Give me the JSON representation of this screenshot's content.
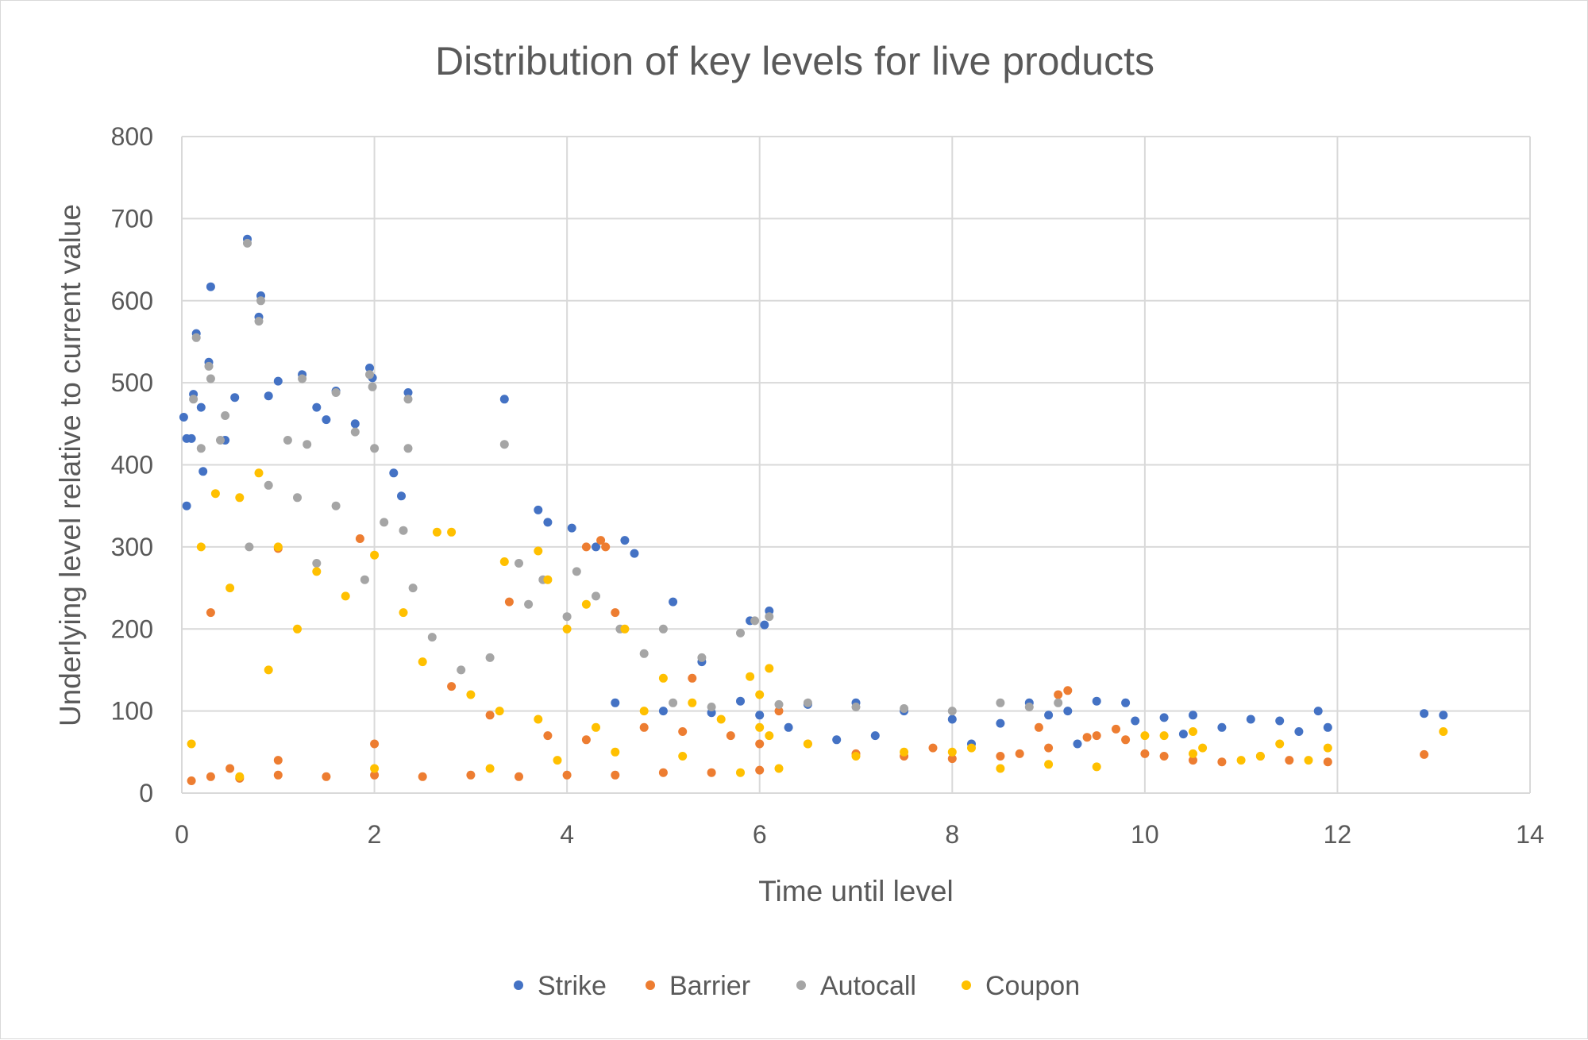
{
  "chart_data": {
    "type": "scatter",
    "title": "Distribution of key levels for live products",
    "xlabel": "Time until level",
    "ylabel": "Underlying level relative to current value",
    "xlim": [
      0,
      14
    ],
    "ylim": [
      0,
      800
    ],
    "x_ticks": [
      "0",
      "2",
      "4",
      "6",
      "8",
      "10",
      "12",
      "14"
    ],
    "y_ticks": [
      "0",
      "100",
      "200",
      "300",
      "400",
      "500",
      "600",
      "700",
      "800"
    ],
    "grid": true,
    "legend_position": "bottom",
    "series": [
      {
        "name": "Strike",
        "color": "#4472C4",
        "points": [
          [
            0.02,
            458
          ],
          [
            0.05,
            432
          ],
          [
            0.1,
            432
          ],
          [
            0.3,
            617
          ],
          [
            0.15,
            560
          ],
          [
            0.68,
            675
          ],
          [
            0.82,
            606
          ],
          [
            0.8,
            580
          ],
          [
            0.12,
            486
          ],
          [
            0.28,
            525
          ],
          [
            0.2,
            470
          ],
          [
            1.0,
            502
          ],
          [
            1.25,
            510
          ],
          [
            0.55,
            482
          ],
          [
            0.9,
            484
          ],
          [
            1.95,
            518
          ],
          [
            1.98,
            506
          ],
          [
            2.35,
            488
          ],
          [
            1.6,
            490
          ],
          [
            3.35,
            480
          ],
          [
            0.05,
            350
          ],
          [
            0.22,
            392
          ],
          [
            0.45,
            430
          ],
          [
            1.4,
            470
          ],
          [
            1.5,
            455
          ],
          [
            1.8,
            450
          ],
          [
            2.2,
            390
          ],
          [
            2.28,
            362
          ],
          [
            3.7,
            345
          ],
          [
            3.8,
            330
          ],
          [
            4.05,
            323
          ],
          [
            4.3,
            300
          ],
          [
            4.6,
            308
          ],
          [
            4.7,
            292
          ],
          [
            5.1,
            233
          ],
          [
            5.4,
            160
          ],
          [
            6.1,
            222
          ],
          [
            5.9,
            210
          ],
          [
            6.05,
            205
          ],
          [
            4.5,
            110
          ],
          [
            5.0,
            100
          ],
          [
            5.5,
            98
          ],
          [
            6.0,
            95
          ],
          [
            6.5,
            108
          ],
          [
            7.0,
            110
          ],
          [
            7.5,
            100
          ],
          [
            8.0,
            90
          ],
          [
            8.5,
            85
          ],
          [
            9.0,
            95
          ],
          [
            9.5,
            112
          ],
          [
            9.8,
            110
          ],
          [
            10.2,
            92
          ],
          [
            10.5,
            95
          ],
          [
            10.8,
            80
          ],
          [
            11.1,
            90
          ],
          [
            11.4,
            88
          ],
          [
            11.8,
            100
          ],
          [
            11.9,
            80
          ],
          [
            12.9,
            97
          ],
          [
            13.1,
            95
          ],
          [
            11.6,
            75
          ],
          [
            6.8,
            65
          ],
          [
            7.2,
            70
          ],
          [
            8.2,
            60
          ],
          [
            9.3,
            60
          ],
          [
            9.9,
            88
          ],
          [
            10.4,
            72
          ],
          [
            8.8,
            110
          ],
          [
            9.2,
            100
          ],
          [
            6.3,
            80
          ],
          [
            5.8,
            112
          ]
        ]
      },
      {
        "name": "Barrier",
        "color": "#ED7D31",
        "points": [
          [
            0.1,
            15
          ],
          [
            0.3,
            20
          ],
          [
            0.6,
            18
          ],
          [
            1.0,
            22
          ],
          [
            1.5,
            20
          ],
          [
            2.0,
            22
          ],
          [
            2.5,
            20
          ],
          [
            3.0,
            22
          ],
          [
            3.5,
            20
          ],
          [
            4.0,
            22
          ],
          [
            4.5,
            22
          ],
          [
            5.0,
            25
          ],
          [
            5.5,
            25
          ],
          [
            6.0,
            28
          ],
          [
            4.2,
            300
          ],
          [
            4.35,
            308
          ],
          [
            4.4,
            300
          ],
          [
            3.4,
            233
          ],
          [
            4.5,
            220
          ],
          [
            5.3,
            140
          ],
          [
            6.2,
            100
          ],
          [
            6.5,
            60
          ],
          [
            7.0,
            48
          ],
          [
            7.5,
            45
          ],
          [
            8.0,
            42
          ],
          [
            8.5,
            45
          ],
          [
            9.0,
            55
          ],
          [
            9.5,
            70
          ],
          [
            9.8,
            65
          ],
          [
            10.0,
            48
          ],
          [
            10.2,
            45
          ],
          [
            10.5,
            40
          ],
          [
            10.8,
            38
          ],
          [
            11.2,
            45
          ],
          [
            11.5,
            40
          ],
          [
            11.9,
            38
          ],
          [
            12.9,
            47
          ],
          [
            9.2,
            125
          ],
          [
            9.1,
            120
          ],
          [
            8.9,
            80
          ],
          [
            1.0,
            298
          ],
          [
            1.85,
            310
          ],
          [
            0.3,
            220
          ],
          [
            2.8,
            130
          ],
          [
            3.2,
            95
          ],
          [
            3.8,
            70
          ],
          [
            4.2,
            65
          ],
          [
            4.8,
            80
          ],
          [
            5.2,
            75
          ],
          [
            5.7,
            70
          ],
          [
            6.0,
            60
          ],
          [
            2.0,
            60
          ],
          [
            1.0,
            40
          ],
          [
            0.5,
            30
          ],
          [
            7.8,
            55
          ],
          [
            8.7,
            48
          ],
          [
            9.4,
            68
          ],
          [
            9.7,
            78
          ]
        ]
      },
      {
        "name": "Autocall",
        "color": "#A5A5A5",
        "points": [
          [
            0.68,
            670
          ],
          [
            0.82,
            600
          ],
          [
            0.8,
            575
          ],
          [
            0.15,
            555
          ],
          [
            0.28,
            520
          ],
          [
            0.3,
            505
          ],
          [
            0.12,
            480
          ],
          [
            0.45,
            460
          ],
          [
            1.25,
            505
          ],
          [
            1.95,
            510
          ],
          [
            1.98,
            495
          ],
          [
            2.35,
            480
          ],
          [
            1.6,
            488
          ],
          [
            0.2,
            420
          ],
          [
            0.4,
            430
          ],
          [
            1.1,
            430
          ],
          [
            1.3,
            425
          ],
          [
            1.8,
            440
          ],
          [
            2.0,
            420
          ],
          [
            2.35,
            420
          ],
          [
            3.35,
            425
          ],
          [
            0.9,
            375
          ],
          [
            1.2,
            360
          ],
          [
            1.6,
            350
          ],
          [
            2.1,
            330
          ],
          [
            2.3,
            320
          ],
          [
            3.5,
            280
          ],
          [
            3.6,
            230
          ],
          [
            3.75,
            260
          ],
          [
            4.0,
            215
          ],
          [
            4.1,
            270
          ],
          [
            4.3,
            240
          ],
          [
            4.55,
            200
          ],
          [
            4.8,
            170
          ],
          [
            5.0,
            200
          ],
          [
            5.4,
            165
          ],
          [
            5.8,
            195
          ],
          [
            5.95,
            210
          ],
          [
            6.1,
            215
          ],
          [
            6.5,
            110
          ],
          [
            7.0,
            105
          ],
          [
            7.5,
            103
          ],
          [
            8.0,
            100
          ],
          [
            8.5,
            110
          ],
          [
            8.8,
            105
          ],
          [
            9.1,
            110
          ],
          [
            5.1,
            110
          ],
          [
            5.5,
            105
          ],
          [
            6.2,
            108
          ],
          [
            3.2,
            165
          ],
          [
            2.6,
            190
          ],
          [
            2.9,
            150
          ],
          [
            0.7,
            300
          ],
          [
            1.4,
            280
          ],
          [
            1.9,
            260
          ],
          [
            2.4,
            250
          ]
        ]
      },
      {
        "name": "Coupon",
        "color": "#FFC000",
        "points": [
          [
            0.8,
            390
          ],
          [
            0.35,
            365
          ],
          [
            0.6,
            360
          ],
          [
            2.8,
            318
          ],
          [
            2.65,
            318
          ],
          [
            3.35,
            282
          ],
          [
            3.7,
            295
          ],
          [
            3.8,
            260
          ],
          [
            4.2,
            230
          ],
          [
            4.0,
            200
          ],
          [
            4.6,
            200
          ],
          [
            5.0,
            140
          ],
          [
            6.1,
            152
          ],
          [
            5.9,
            142
          ],
          [
            6.0,
            120
          ],
          [
            5.3,
            110
          ],
          [
            4.8,
            100
          ],
          [
            5.6,
            90
          ],
          [
            6.0,
            80
          ],
          [
            6.1,
            70
          ],
          [
            6.5,
            60
          ],
          [
            7.0,
            45
          ],
          [
            7.5,
            50
          ],
          [
            8.0,
            50
          ],
          [
            8.5,
            30
          ],
          [
            9.0,
            35
          ],
          [
            9.5,
            32
          ],
          [
            10.0,
            70
          ],
          [
            10.2,
            70
          ],
          [
            10.5,
            48
          ],
          [
            10.6,
            55
          ],
          [
            11.0,
            40
          ],
          [
            11.2,
            45
          ],
          [
            11.4,
            60
          ],
          [
            11.7,
            40
          ],
          [
            11.9,
            55
          ],
          [
            13.1,
            75
          ],
          [
            10.5,
            75
          ],
          [
            8.2,
            55
          ],
          [
            6.2,
            30
          ],
          [
            5.8,
            25
          ],
          [
            1.0,
            300
          ],
          [
            1.4,
            270
          ],
          [
            1.7,
            240
          ],
          [
            2.0,
            290
          ],
          [
            2.3,
            220
          ],
          [
            0.2,
            300
          ],
          [
            0.5,
            250
          ],
          [
            3.0,
            120
          ],
          [
            3.3,
            100
          ],
          [
            3.7,
            90
          ],
          [
            4.3,
            80
          ],
          [
            2.5,
            160
          ],
          [
            1.2,
            200
          ],
          [
            0.9,
            150
          ],
          [
            0.1,
            60
          ],
          [
            0.6,
            20
          ],
          [
            2.0,
            30
          ],
          [
            3.2,
            30
          ],
          [
            3.9,
            40
          ],
          [
            4.5,
            50
          ],
          [
            5.2,
            45
          ]
        ]
      }
    ]
  }
}
